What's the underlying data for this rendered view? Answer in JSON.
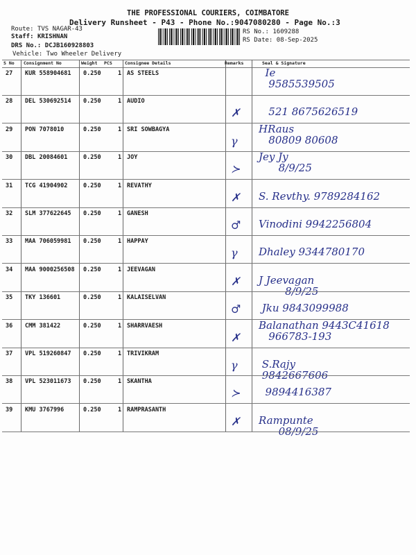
{
  "header": {
    "company": "THE PROFESSIONAL COURIERS, COIMBATORE",
    "subtitle": "Delivery Runsheet - P43 - Phone No.:9047080280 - Page No.:3",
    "route_label": "Route:",
    "route": "TVS NAGAR-43",
    "staff_label": "Staff:",
    "staff": "KRISHNAN",
    "drs_label": "DRS No.:",
    "drs": "DCJB160928803",
    "vehicle_label": "Vehicle:",
    "vehicle": "Two Wheeler Delivery",
    "rs_no_label": "RS No.:",
    "rs_no": "1609288",
    "rs_date_label": "RS Date:",
    "rs_date": "08-Sep-2025"
  },
  "columns": {
    "sno": "S No",
    "consignment": "Consignment No",
    "weight": "Weight",
    "pcs": "PCS",
    "consignee": "Consignee Details",
    "remarks": "Remarks",
    "signature": "Seal & Signature"
  },
  "rows": [
    {
      "sno": "27",
      "consignment": "KUR 558904681",
      "weight": "0.250",
      "pcs": "1",
      "consignee": "AS STEELS",
      "remark": "",
      "signature": "  Ie\n   9585539505"
    },
    {
      "sno": "28",
      "consignment": "DEL 530692514",
      "weight": "0.250",
      "pcs": "1",
      "consignee": "AUDIO",
      "remark": "✗",
      "signature": "\n   521 8675626519"
    },
    {
      "sno": "29",
      "consignment": "PON 7078010",
      "weight": "0.250",
      "pcs": "1",
      "consignee": "SRI SOWBAGYA",
      "remark": "γ",
      "signature": "HRaus\n   80809 80608"
    },
    {
      "sno": "30",
      "consignment": "DBL 20084601",
      "weight": "0.250",
      "pcs": "1",
      "consignee": "JOY",
      "remark": "≻",
      "signature": "Jey Jy\n      8/9/25"
    },
    {
      "sno": "31",
      "consignment": "TCG 41904902",
      "weight": "0.250",
      "pcs": "1",
      "consignee": "REVATHY",
      "remark": "✗",
      "signature": "\nS. Revthy. 9789284162"
    },
    {
      "sno": "32",
      "consignment": "SLM 377622645",
      "weight": "0.250",
      "pcs": "1",
      "consignee": "GANESH",
      "remark": "♂",
      "signature": "\nVinodini 9942256804"
    },
    {
      "sno": "33",
      "consignment": "MAA 706059981",
      "weight": "0.250",
      "pcs": "1",
      "consignee": "HAPPAY",
      "remark": "γ",
      "signature": "\nDhaley 9344780170"
    },
    {
      "sno": "34",
      "consignment": "MAA 9000256508",
      "weight": "0.250",
      "pcs": "1",
      "consignee": "JEEVAGAN",
      "remark": "✗",
      "signature": "\nJ Jeevagan\n        8/9/25"
    },
    {
      "sno": "35",
      "consignment": "TKY 136601",
      "weight": "0.250",
      "pcs": "1",
      "consignee": "KALAISELVAN",
      "remark": "♂",
      "signature": "\n Jku 9843099988"
    },
    {
      "sno": "36",
      "consignment": "CMM 381422",
      "weight": "0.250",
      "pcs": "1",
      "consignee": "SHARRVAESH",
      "remark": "✗",
      "signature": "Balanathan 9443C41618\n   966783-193"
    },
    {
      "sno": "37",
      "consignment": "VPL 519260847",
      "weight": "0.250",
      "pcs": "1",
      "consignee": "TRIVIKRAM",
      "remark": "γ",
      "signature": "\n S.Rajy\n 9842667606"
    },
    {
      "sno": "38",
      "consignment": "VPL 523011673",
      "weight": "0.250",
      "pcs": "1",
      "consignee": "SKANTHA",
      "remark": "≻",
      "signature": "\n  9894416387"
    },
    {
      "sno": "39",
      "consignment": "KMU 3767996",
      "weight": "0.250",
      "pcs": "1",
      "consignee": "RAMPRASANTH",
      "remark": "✗",
      "signature": "\nRampunte\n      08/9/25"
    }
  ]
}
